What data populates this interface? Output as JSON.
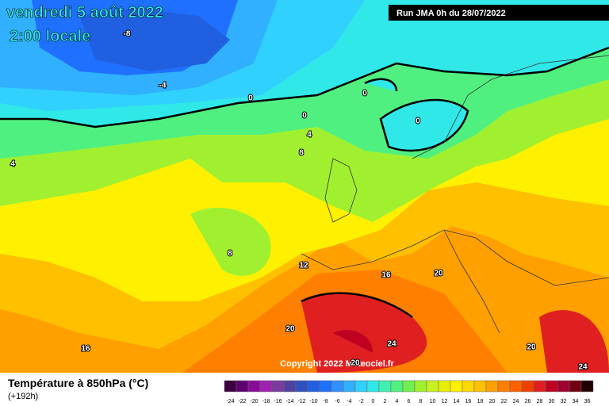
{
  "header": {
    "date": "vendredi 5 août 2022",
    "time": "2:00 locale",
    "run": "Run JMA 0h du 28/07/2022"
  },
  "copyright": "Copyright 2022 Meteociel.fr",
  "footer": {
    "title": "Température à 850hPa (°C)",
    "lead": "(+192h)"
  },
  "contour_labels": [
    "-8",
    "-4",
    "0",
    "0",
    "0",
    "0",
    "4",
    "4",
    "8",
    "8",
    "12",
    "16",
    "16",
    "20",
    "20",
    "20",
    "24",
    "24",
    "20"
  ],
  "legend": {
    "labels": [
      -24,
      -22,
      -20,
      -18,
      -16,
      -14,
      -12,
      -10,
      -8,
      -6,
      -4,
      -2,
      0,
      2,
      4,
      6,
      8,
      10,
      12,
      14,
      16,
      18,
      20,
      22,
      24,
      26,
      28,
      30,
      32,
      34,
      36
    ],
    "colors": [
      "#3a0040",
      "#600070",
      "#8a0a9a",
      "#a020b0",
      "#7a3aa0",
      "#5040a0",
      "#3050c0",
      "#2060e0",
      "#2070ff",
      "#3090ff",
      "#30b0ff",
      "#30d0ff",
      "#30e8e8",
      "#40f0b0",
      "#50f080",
      "#70f050",
      "#a0f030",
      "#c8f020",
      "#e8f000",
      "#fff000",
      "#ffd800",
      "#ffc000",
      "#ffa000",
      "#ff8000",
      "#ff6000",
      "#f04000",
      "#e02020",
      "#c00020",
      "#a00030",
      "#700010",
      "#200000"
    ]
  }
}
